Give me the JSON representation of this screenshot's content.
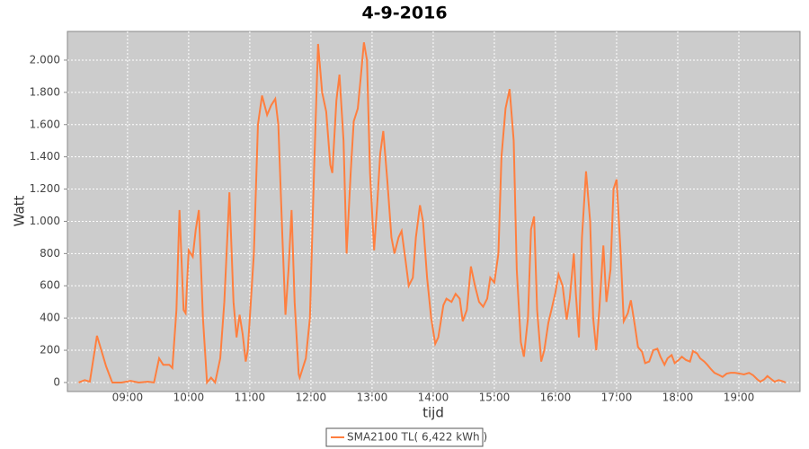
{
  "chart_data": {
    "type": "line",
    "title": "4-9-2016",
    "x_label": "tijd",
    "y_label": "Watt",
    "x": [
      "08:12",
      "08:18",
      "08:23",
      "08:30",
      "08:39",
      "08:45",
      "08:54",
      "09:03",
      "09:11",
      "09:20",
      "09:26",
      "09:31",
      "09:35",
      "09:41",
      "09:44",
      "09:48",
      "09:51",
      "09:55",
      "09:57",
      "10:00",
      "10:04",
      "10:07",
      "10:10",
      "10:14",
      "10:18",
      "10:22",
      "10:26",
      "10:31",
      "10:35",
      "10:40",
      "10:44",
      "10:47",
      "10:50",
      "10:53",
      "10:56",
      "10:58",
      "11:04",
      "11:08",
      "11:12",
      "11:17",
      "11:21",
      "11:25",
      "11:28",
      "11:32",
      "11:35",
      "11:38",
      "11:41",
      "11:44",
      "11:48",
      "11:49",
      "11:55",
      "11:59",
      "12:03",
      "12:07",
      "12:11",
      "12:15",
      "12:19",
      "12:21",
      "12:25",
      "12:28",
      "12:32",
      "12:35",
      "12:39",
      "12:42",
      "12:46",
      "12:49",
      "12:52",
      "12:55",
      "12:58",
      "13:02",
      "13:05",
      "13:08",
      "13:11",
      "13:15",
      "13:19",
      "13:22",
      "13:26",
      "13:29",
      "13:33",
      "13:36",
      "13:40",
      "13:43",
      "13:47",
      "13:50",
      "13:54",
      "13:58",
      "14:02",
      "14:05",
      "14:10",
      "14:13",
      "14:18",
      "14:22",
      "14:26",
      "14:29",
      "14:33",
      "14:37",
      "14:41",
      "14:45",
      "14:49",
      "14:53",
      "14:56",
      "15:00",
      "15:04",
      "15:07",
      "15:11",
      "15:15",
      "15:19",
      "15:22",
      "15:26",
      "15:29",
      "15:33",
      "15:36",
      "15:39",
      "15:42",
      "15:46",
      "15:49",
      "15:53",
      "15:56",
      "16:00",
      "16:03",
      "16:07",
      "16:11",
      "16:14",
      "16:18",
      "16:20",
      "16:23",
      "16:26",
      "16:30",
      "16:34",
      "16:37",
      "16:40",
      "16:43",
      "16:47",
      "16:50",
      "16:54",
      "16:57",
      "17:00",
      "17:04",
      "17:07",
      "17:11",
      "17:14",
      "17:18",
      "17:21",
      "17:25",
      "17:28",
      "17:32",
      "17:36",
      "17:40",
      "17:43",
      "17:47",
      "17:50",
      "17:54",
      "17:57",
      "18:01",
      "18:04",
      "18:08",
      "18:12",
      "18:15",
      "18:19",
      "18:22",
      "18:26",
      "18:29",
      "18:33",
      "18:36",
      "18:41",
      "18:44",
      "18:48",
      "18:52",
      "18:56",
      "19:01",
      "19:05",
      "19:10",
      "19:14",
      "19:18",
      "19:21",
      "19:25",
      "19:28",
      "19:32",
      "19:35",
      "19:39",
      "19:42",
      "19:46"
    ],
    "series": [
      {
        "name": "SMA2100 TL( 6,422 kWh )",
        "color": "#ff7f3f",
        "values": [
          0,
          15,
          5,
          290,
          100,
          0,
          0,
          10,
          0,
          5,
          0,
          150,
          110,
          110,
          90,
          450,
          1070,
          450,
          430,
          820,
          780,
          950,
          1070,
          400,
          0,
          30,
          0,
          150,
          500,
          1180,
          500,
          280,
          420,
          300,
          130,
          200,
          800,
          1600,
          1780,
          1660,
          1720,
          1760,
          1600,
          900,
          420,
          700,
          1070,
          500,
          50,
          30,
          150,
          400,
          1300,
          2100,
          1800,
          1680,
          1350,
          1300,
          1750,
          1910,
          1500,
          800,
          1300,
          1620,
          1700,
          1900,
          2110,
          2000,
          1300,
          820,
          1100,
          1420,
          1560,
          1250,
          900,
          800,
          900,
          940,
          750,
          600,
          650,
          900,
          1100,
          1000,
          650,
          400,
          240,
          280,
          480,
          520,
          500,
          550,
          520,
          380,
          450,
          720,
          600,
          500,
          470,
          520,
          650,
          620,
          800,
          1400,
          1700,
          1820,
          1500,
          700,
          250,
          160,
          400,
          950,
          1030,
          450,
          130,
          200,
          370,
          450,
          560,
          670,
          600,
          390,
          520,
          800,
          550,
          280,
          900,
          1310,
          1000,
          400,
          200,
          450,
          850,
          500,
          700,
          1200,
          1260,
          800,
          380,
          430,
          510,
          350,
          220,
          190,
          120,
          130,
          200,
          210,
          160,
          110,
          150,
          170,
          120,
          140,
          160,
          140,
          130,
          195,
          180,
          150,
          130,
          110,
          80,
          60,
          45,
          35,
          55,
          60,
          60,
          55,
          50,
          60,
          45,
          20,
          5,
          20,
          40,
          20,
          5,
          15,
          10,
          0
        ]
      }
    ],
    "xlim": [
      "08:01",
      "20:00"
    ],
    "xticks": [
      "09:00",
      "10:00",
      "11:00",
      "12:00",
      "13:00",
      "14:00",
      "15:00",
      "16:00",
      "17:00",
      "18:00",
      "19:00"
    ],
    "ylim": [
      -56,
      2178
    ],
    "yticks": [
      0,
      200,
      400,
      600,
      800,
      {
        "value": 1000,
        "label": "1.000"
      },
      {
        "value": 1200,
        "label": "1.200"
      },
      {
        "value": 1400,
        "label": "1.400"
      },
      {
        "value": 1600,
        "label": "1.600"
      },
      {
        "value": 1800,
        "label": "1.800"
      },
      {
        "value": 2000,
        "label": "2.000"
      }
    ],
    "grid": true,
    "legend": "bottom"
  }
}
